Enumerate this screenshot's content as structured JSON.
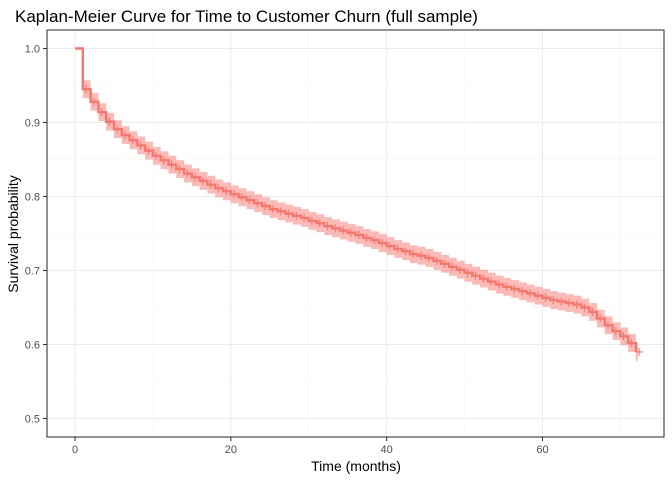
{
  "chart_data": {
    "type": "line",
    "title": "Kaplan-Meier Curve for Time to Customer Churn (full sample)",
    "xlabel": "Time (months)",
    "ylabel": "Survival probability",
    "xlim": [
      -3.6,
      75.6
    ],
    "ylim": [
      0.475,
      1.025
    ],
    "x_ticks": [
      0,
      20,
      40,
      60
    ],
    "x_minor_ticks": [
      10,
      30,
      50,
      70
    ],
    "y_ticks": [
      0.5,
      0.6,
      0.7,
      0.8,
      0.9,
      1.0
    ],
    "y_tick_labels": [
      "0.5",
      "0.6",
      "0.7",
      "0.8",
      "0.9",
      "1.0"
    ],
    "y_minor_ticks": [
      0.55,
      0.65,
      0.75,
      0.85,
      0.95
    ],
    "grid": true,
    "legend": "none",
    "series": [
      {
        "color": "#f8766d",
        "ci_color": "#f8766d",
        "ci_half_width": 0.012,
        "censor_marks": true,
        "x": [
          0,
          1,
          2,
          3,
          4,
          5,
          6,
          7,
          8,
          9,
          10,
          11,
          12,
          13,
          14,
          15,
          16,
          17,
          18,
          19,
          20,
          21,
          22,
          23,
          24,
          25,
          26,
          27,
          28,
          29,
          30,
          31,
          32,
          33,
          34,
          35,
          36,
          37,
          38,
          39,
          40,
          41,
          42,
          43,
          44,
          45,
          46,
          47,
          48,
          49,
          50,
          51,
          52,
          53,
          54,
          55,
          56,
          57,
          58,
          59,
          60,
          61,
          62,
          63,
          64,
          65,
          66,
          67,
          68,
          69,
          70,
          71,
          72
        ],
        "y": [
          1.0,
          0.945,
          0.928,
          0.914,
          0.901,
          0.891,
          0.883,
          0.876,
          0.869,
          0.862,
          0.855,
          0.849,
          0.843,
          0.837,
          0.831,
          0.826,
          0.821,
          0.816,
          0.811,
          0.807,
          0.803,
          0.799,
          0.795,
          0.791,
          0.787,
          0.783,
          0.78,
          0.777,
          0.774,
          0.771,
          0.767,
          0.764,
          0.76,
          0.757,
          0.754,
          0.751,
          0.748,
          0.744,
          0.741,
          0.737,
          0.733,
          0.729,
          0.726,
          0.722,
          0.72,
          0.717,
          0.713,
          0.709,
          0.705,
          0.701,
          0.697,
          0.693,
          0.689,
          0.685,
          0.681,
          0.678,
          0.675,
          0.672,
          0.669,
          0.666,
          0.663,
          0.66,
          0.658,
          0.656,
          0.654,
          0.65,
          0.644,
          0.635,
          0.626,
          0.618,
          0.611,
          0.602,
          0.59
        ]
      }
    ]
  }
}
